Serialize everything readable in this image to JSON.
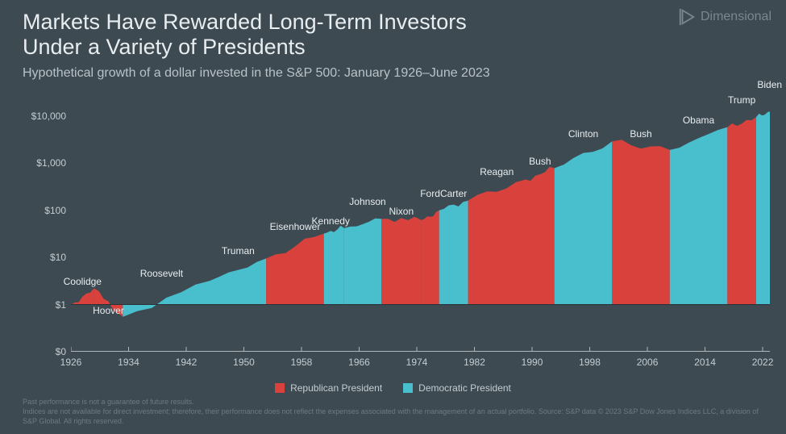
{
  "branding": {
    "name": "Dimensional"
  },
  "title_line1": "Markets Have Rewarded Long-Term Investors",
  "title_line2": "Under a Variety of Presidents",
  "subtitle": "Hypothetical growth of a dollar invested in the S&P 500: January 1926–June 2023",
  "colors": {
    "background": "#3d4a52",
    "republican": "#d8413c",
    "democratic": "#49bfce",
    "text": "#e8edf0",
    "axis_text": "#c4ccd1",
    "baseline": "#2a3238",
    "footnote": "#6e7a82",
    "logo": "#7a8790"
  },
  "chart": {
    "type": "area-log",
    "x_range": [
      1926,
      2023
    ],
    "x_ticks": [
      1926,
      1934,
      1942,
      1950,
      1958,
      1966,
      1974,
      1982,
      1990,
      1998,
      2006,
      2014,
      2022
    ],
    "y_log_range_exp": [
      -1,
      4.15
    ],
    "y_ticks": [
      {
        "value": 0,
        "label": "$0",
        "log": null
      },
      {
        "value": 1,
        "label": "$1",
        "log": 0
      },
      {
        "value": 10,
        "label": "$10",
        "log": 1
      },
      {
        "value": 100,
        "label": "$100",
        "log": 2
      },
      {
        "value": 1000,
        "label": "$1,000",
        "log": 3
      },
      {
        "value": 10000,
        "label": "$10,000",
        "log": 4
      }
    ],
    "baseline_log": 0,
    "title_fontsize": 27,
    "subtitle_fontsize": 16,
    "tick_fontsize": 12,
    "label_fontsize": 12
  },
  "legend": {
    "items": [
      {
        "label": "Republican President",
        "color": "#d8413c"
      },
      {
        "label": "Democratic President",
        "color": "#49bfce"
      }
    ]
  },
  "presidents": [
    {
      "name": "Coolidge",
      "party": "R",
      "start": 1926.0,
      "end": 1929.2,
      "v0": 1.0,
      "v1": 2.2,
      "xoff": 0,
      "yoff": -16
    },
    {
      "name": "Hoover",
      "party": "R",
      "start": 1929.2,
      "end": 1933.2,
      "v0": 2.2,
      "v1": 0.55,
      "xoff": 0,
      "yoff": 20
    },
    {
      "name": "Roosevelt",
      "party": "D",
      "start": 1933.2,
      "end": 1945.3,
      "v0": 0.55,
      "v1": 3.2,
      "xoff": -6,
      "yoff": -16
    },
    {
      "name": "Truman",
      "party": "D",
      "start": 1945.3,
      "end": 1953.1,
      "v0": 3.2,
      "v1": 9.5,
      "xoff": 0,
      "yoff": -16
    },
    {
      "name": "Eisenhower",
      "party": "R",
      "start": 1953.1,
      "end": 1961.1,
      "v0": 9.5,
      "v1": 32.0,
      "xoff": 0,
      "yoff": -16
    },
    {
      "name": "Kennedy",
      "party": "D",
      "start": 1961.1,
      "end": 1963.9,
      "v0": 32.0,
      "v1": 42.0,
      "xoff": -4,
      "yoff": -16
    },
    {
      "name": "Johnson",
      "party": "D",
      "start": 1963.9,
      "end": 1969.1,
      "v0": 42.0,
      "v1": 66.0,
      "xoff": 6,
      "yoff": -28
    },
    {
      "name": "Nixon",
      "party": "R",
      "start": 1969.1,
      "end": 1974.6,
      "v0": 66.0,
      "v1": 62.0,
      "xoff": 0,
      "yoff": -16
    },
    {
      "name": "Ford",
      "party": "R",
      "start": 1974.6,
      "end": 1977.1,
      "v0": 62.0,
      "v1": 100.0,
      "xoff": 0,
      "yoff": -28
    },
    {
      "name": "Carter",
      "party": "D",
      "start": 1977.1,
      "end": 1981.1,
      "v0": 100.0,
      "v1": 160.0,
      "xoff": 0,
      "yoff": -16
    },
    {
      "name": "Reagan",
      "party": "R",
      "start": 1981.1,
      "end": 1989.1,
      "v0": 160.0,
      "v1": 450.0,
      "xoff": 0,
      "yoff": -16
    },
    {
      "name": "Bush",
      "party": "R",
      "start": 1989.1,
      "end": 1993.1,
      "v0": 450.0,
      "v1": 780.0,
      "xoff": 0,
      "yoff": -16
    },
    {
      "name": "Clinton",
      "party": "D",
      "start": 1993.1,
      "end": 2001.1,
      "v0": 780.0,
      "v1": 2900,
      "xoff": 0,
      "yoff": -16
    },
    {
      "name": "Bush",
      "party": "R",
      "start": 2001.1,
      "end": 2009.1,
      "v0": 2900,
      "v1": 1900,
      "xoff": 0,
      "yoff": -16
    },
    {
      "name": "Obama",
      "party": "D",
      "start": 2009.1,
      "end": 2017.1,
      "v0": 1900,
      "v1": 5800,
      "xoff": 0,
      "yoff": -16
    },
    {
      "name": "Trump",
      "party": "R",
      "start": 2017.1,
      "end": 2021.1,
      "v0": 5800,
      "v1": 9500,
      "xoff": 0,
      "yoff": -28
    },
    {
      "name": "Biden",
      "party": "D",
      "start": 2021.1,
      "end": 2023.5,
      "v0": 9500,
      "v1": 12500,
      "xoff": 6,
      "yoff": -40
    }
  ],
  "footnote_line1": "Past performance is not a guarantee of future results.",
  "footnote_line2": "Indices are not available for direct investment; therefore, their performance does not reflect the expenses associated with the management of an actual portfolio. Source: S&P data © 2023 S&P Dow Jones Indices LLC, a division of S&P Global. All rights reserved."
}
